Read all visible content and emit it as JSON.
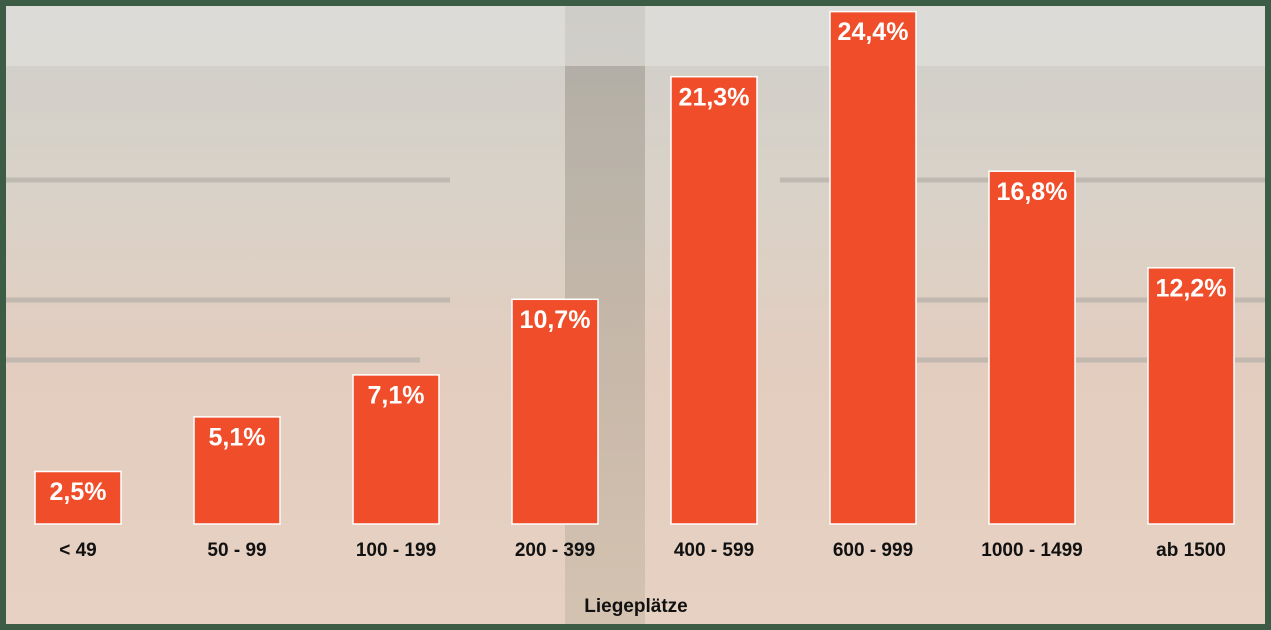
{
  "chart_data": {
    "type": "bar",
    "categories": [
      "< 49",
      "50 - 99",
      "100 - 199",
      "200 - 399",
      "400 - 599",
      "600 - 999",
      "1000 - 1499",
      "ab 1500"
    ],
    "values": [
      2.5,
      5.1,
      7.1,
      10.7,
      21.3,
      24.4,
      16.8,
      12.2
    ],
    "value_labels": [
      "2,5%",
      "5,1%",
      "7,1%",
      "10,7%",
      "21,3%",
      "24,4%",
      "16,8%",
      "12,2%"
    ],
    "color": "#f04e2b",
    "x_label": "Liegeplätze"
  }
}
